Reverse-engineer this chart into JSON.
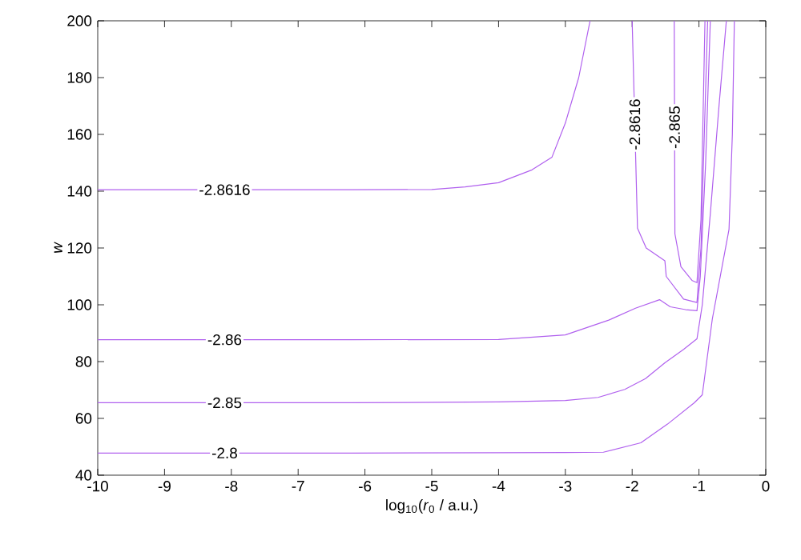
{
  "chart_data": {
    "type": "line",
    "xlabel": "log$_{10}$(*r*$_{0}$ / a.u.)",
    "ylabel": "w",
    "xlim": [
      -10,
      0
    ],
    "ylim": [
      40,
      200
    ],
    "xticks": [
      -10,
      -9,
      -8,
      -7,
      -6,
      -5,
      -4,
      -3,
      -2,
      -1,
      0
    ],
    "yticks": [
      40,
      60,
      80,
      100,
      120,
      140,
      160,
      180,
      200
    ],
    "grid": false,
    "marker": "none",
    "line_style": "solid",
    "series": [
      {
        "name": "-2.8616",
        "color": "#b060ee",
        "x": [
          -10,
          -6.2,
          -5,
          -4.5,
          -4,
          -3.5,
          -3.2,
          -3,
          -2.8,
          -2.63
        ],
        "values": [
          140.5,
          140.5,
          140.6,
          141.5,
          143,
          147.5,
          152,
          164,
          180,
          200
        ]
      },
      {
        "name": "-2.86",
        "color": "#b060ee",
        "x": [
          -10,
          -6.2,
          -4,
          -3,
          -2.35,
          -1.95,
          -1.59,
          -1.43,
          -1.2,
          -1.03,
          -0.98,
          -0.9,
          -0.83
        ],
        "values": [
          87.7,
          87.7,
          87.8,
          89.4,
          94.6,
          98.8,
          101.8,
          99.3,
          98.3,
          97.9,
          110,
          150,
          200
        ]
      },
      {
        "name": "-2.85",
        "color": "#b060ee",
        "x": [
          -10,
          -6.2,
          -4,
          -3,
          -2.51,
          -2.11,
          -1.8,
          -1.51,
          -1.23,
          -1.03,
          -0.95,
          -0.83,
          -0.7,
          -0.59
        ],
        "values": [
          65.5,
          65.5,
          65.8,
          66.3,
          67.4,
          70.2,
          74,
          79.6,
          84.3,
          88,
          100,
          132,
          170,
          200
        ]
      },
      {
        "name": "-2.8",
        "color": "#b060ee",
        "x": [
          -10,
          -6.2,
          -4,
          -3,
          -2.43,
          -1.87,
          -1.47,
          -1.07,
          -0.95,
          -0.8,
          -0.55,
          -0.5,
          -0.47
        ],
        "values": [
          47.8,
          47.8,
          47.9,
          48,
          48.1,
          51.4,
          58,
          65.5,
          68.3,
          95,
          126.6,
          160,
          200
        ]
      },
      {
        "name": "-2.8616",
        "color": "#b060ee",
        "x": [
          -2.0,
          -1.92,
          -1.79,
          -1.51,
          -1.49,
          -1.23,
          -1.03,
          -0.97,
          -0.92,
          -0.87
        ],
        "values": [
          200,
          127,
          120,
          115.5,
          110,
          102,
          100.8,
          120,
          160,
          200
        ]
      },
      {
        "name": "-2.865",
        "color": "#b060ee",
        "x": [
          -1.37,
          -1.36,
          -1.27,
          -1.1,
          -1.03,
          -0.97,
          -0.91
        ],
        "values": [
          200,
          125,
          113.4,
          108.5,
          107.8,
          130,
          200
        ]
      }
    ]
  }
}
